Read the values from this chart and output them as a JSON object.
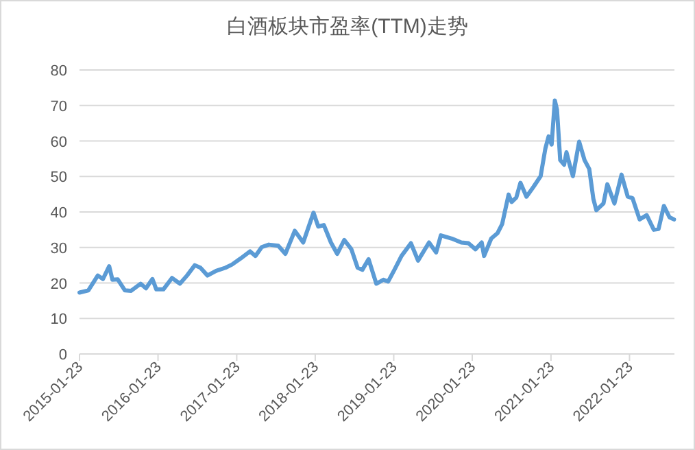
{
  "chart_data": {
    "type": "line",
    "title": "白酒板块市盈率(TTM)走势",
    "x": [
      "2015-01-23",
      "2015-03-05",
      "2015-04-18",
      "2015-05-12",
      "2015-06-10",
      "2015-06-25",
      "2015-07-20",
      "2015-08-22",
      "2015-09-20",
      "2015-11-03",
      "2015-11-28",
      "2015-12-28",
      "2016-01-15",
      "2016-02-17",
      "2016-03-28",
      "2016-05-04",
      "2016-06-06",
      "2016-07-12",
      "2016-08-07",
      "2016-09-09",
      "2016-10-19",
      "2016-12-02",
      "2017-01-01",
      "2017-02-10",
      "2017-03-26",
      "2017-04-20",
      "2017-05-19",
      "2017-06-21",
      "2017-08-04",
      "2017-09-06",
      "2017-10-20",
      "2017-11-28",
      "2018-01-15",
      "2018-02-06",
      "2018-03-04",
      "2018-04-06",
      "2018-05-05",
      "2018-06-07",
      "2018-07-10",
      "2018-08-08",
      "2018-08-30",
      "2018-09-28",
      "2018-11-03",
      "2018-12-06",
      "2018-12-28",
      "2019-01-26",
      "2019-02-28",
      "2019-04-13",
      "2019-05-16",
      "2019-07-06",
      "2019-08-08",
      "2019-08-30",
      "2019-10-20",
      "2019-12-03",
      "2020-01-05",
      "2020-02-07",
      "2020-03-07",
      "2020-03-18",
      "2020-04-20",
      "2020-05-19",
      "2020-06-10",
      "2020-07-10",
      "2020-07-24",
      "2020-08-15",
      "2020-09-03",
      "2020-10-01",
      "2020-11-03",
      "2020-12-06",
      "2020-12-28",
      "2021-01-12",
      "2021-01-26",
      "2021-02-10",
      "2021-02-20",
      "2021-03-07",
      "2021-03-25",
      "2021-04-05",
      "2021-04-20",
      "2021-05-05",
      "2021-06-03",
      "2021-06-28",
      "2021-07-20",
      "2021-08-08",
      "2021-08-22",
      "2021-09-24",
      "2021-10-12",
      "2021-11-14",
      "2021-12-17",
      "2022-01-15",
      "2022-02-06",
      "2022-03-11",
      "2022-04-13",
      "2022-05-16",
      "2022-06-07",
      "2022-07-02",
      "2022-07-28",
      "2022-08-18"
    ],
    "series": [
      {
        "color": "#5b9bd5",
        "values": [
          17.3,
          17.9,
          22.1,
          21.1,
          24.7,
          20.9,
          21.0,
          17.9,
          17.8,
          19.8,
          18.5,
          21.1,
          18.2,
          18.2,
          21.4,
          19.8,
          22.1,
          25.0,
          24.3,
          22.1,
          23.4,
          24.3,
          25.2,
          26.9,
          28.9,
          27.6,
          30.1,
          30.8,
          30.5,
          28.2,
          34.7,
          31.4,
          39.8,
          35.9,
          36.3,
          31.4,
          28.2,
          32.1,
          29.5,
          24.3,
          23.7,
          26.7,
          19.8,
          20.9,
          20.4,
          23.7,
          27.6,
          31.2,
          26.3,
          31.4,
          28.6,
          33.4,
          32.5,
          31.4,
          31.2,
          29.5,
          31.4,
          27.6,
          32.5,
          34.0,
          36.6,
          44.9,
          42.8,
          44.1,
          48.2,
          44.3,
          47.1,
          50.1,
          57.9,
          61.3,
          59.0,
          71.4,
          68.8,
          54.6,
          53.3,
          56.8,
          53.3,
          50.1,
          59.8,
          54.6,
          52.1,
          43.7,
          40.5,
          42.4,
          47.8,
          42.4,
          50.5,
          44.3,
          43.9,
          37.9,
          39.1,
          35.0,
          35.2,
          41.7,
          38.5,
          37.9
        ]
      }
    ],
    "xlim": [
      "2015-01-23",
      "2022-08-20"
    ],
    "xticks": [
      "2015-01-23",
      "2016-01-23",
      "2017-01-23",
      "2018-01-23",
      "2019-01-23",
      "2020-01-23",
      "2021-01-23",
      "2022-01-23"
    ],
    "ylim": [
      0,
      80
    ],
    "yticks": [
      0,
      10,
      20,
      30,
      40,
      50,
      60,
      70,
      80
    ],
    "grid": "y",
    "marker": "none",
    "line_style": "solid"
  }
}
